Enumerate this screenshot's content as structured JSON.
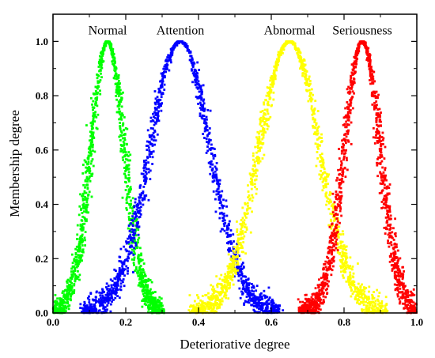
{
  "chart_data": {
    "type": "scatter",
    "title": "",
    "xlabel": "Deteriorative degree",
    "ylabel": "Membership degree",
    "xlim": [
      0.0,
      1.0
    ],
    "ylim": [
      0.0,
      1.1
    ],
    "xticks": [
      "0.0",
      "0.2",
      "0.4",
      "0.6",
      "0.8",
      "1.0"
    ],
    "yticks": [
      "0.0",
      "0.2",
      "0.4",
      "0.6",
      "0.8",
      "1.0"
    ],
    "grid": false,
    "legend": "none",
    "series": [
      {
        "name": "Normal",
        "color": "#00ff00",
        "peak_x": 0.15,
        "peak_y": 1.0,
        "x_range": [
          0.0,
          0.3
        ]
      },
      {
        "name": "Attention",
        "color": "#0000ff",
        "peak_x": 0.35,
        "peak_y": 1.0,
        "x_range": [
          0.08,
          0.62
        ]
      },
      {
        "name": "Abnormal",
        "color": "#ffff00",
        "peak_x": 0.65,
        "peak_y": 1.0,
        "x_range": [
          0.38,
          0.92
        ]
      },
      {
        "name": "Seriousness",
        "color": "#ff0000",
        "peak_x": 0.85,
        "peak_y": 1.0,
        "x_range": [
          0.68,
          1.0
        ]
      }
    ]
  }
}
